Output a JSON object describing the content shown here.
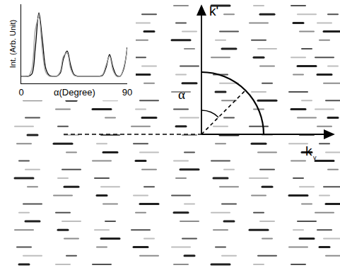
{
  "chart_data": {
    "type": "line",
    "x_label": "α(Degree)",
    "y_label": "Int. (Arb. Unit)",
    "x": [
      0,
      3,
      6,
      9,
      12,
      15,
      18,
      21,
      24,
      27,
      30,
      33,
      36,
      39,
      42,
      45,
      48,
      51,
      54,
      57,
      60,
      63,
      66,
      69,
      72,
      75,
      78,
      81,
      84,
      87,
      90
    ],
    "series": [
      {
        "color": "#000000",
        "line_style": "solid",
        "values": [
          0.1,
          0.1,
          0.1,
          0.13,
          0.5,
          0.98,
          0.6,
          0.2,
          0.11,
          0.1,
          0.1,
          0.14,
          0.35,
          0.45,
          0.25,
          0.12,
          0.1,
          0.1,
          0.1,
          0.1,
          0.1,
          0.1,
          0.1,
          0.11,
          0.22,
          0.4,
          0.22,
          0.11,
          0.1,
          0.2,
          0.5
        ]
      },
      {
        "color": "#a0a0a0",
        "line_style": "solid",
        "values": [
          0.1,
          0.1,
          0.1,
          0.2,
          0.75,
          0.92,
          0.45,
          0.15,
          0.1,
          0.1,
          0.1,
          0.16,
          0.38,
          0.42,
          0.2,
          0.11,
          0.1,
          0.1,
          0.1,
          0.1,
          0.1,
          0.1,
          0.1,
          0.12,
          0.25,
          0.38,
          0.18,
          0.1,
          0.1,
          0.22,
          0.48
        ]
      }
    ],
    "xlim": [
      0,
      90
    ],
    "xticks": [
      0,
      90
    ],
    "ylim": [
      0,
      1.1
    ],
    "tick_labels": "x",
    "grid": false
  },
  "diagram": {
    "vertical_axis_label": "k'",
    "horizontal_axis_label": "k",
    "horizontal_axis_subscript": "v",
    "angle_label": "α"
  }
}
